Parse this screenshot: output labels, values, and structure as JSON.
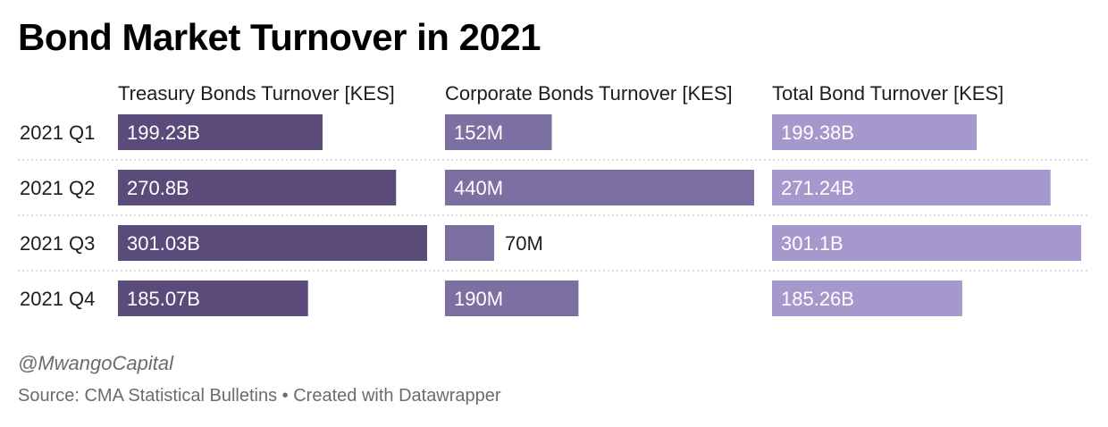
{
  "title": "Bond Market Turnover in 2021",
  "byline": "@MwangoCapital",
  "source": "Source: CMA Statistical Bulletins • Created with Datawrapper",
  "chart_data": {
    "type": "bar",
    "layout": "split-bars",
    "categories": [
      "2021 Q1",
      "2021 Q2",
      "2021 Q3",
      "2021 Q4"
    ],
    "series": [
      {
        "name": "Treasury Bonds Turnover [KES]",
        "values": [
          199.23,
          270.8,
          301.03,
          185.07
        ],
        "unit": "B",
        "labels": [
          "199.23B",
          "270.8B",
          "301.03B",
          "185.07B"
        ],
        "color": "#5a4b7b"
      },
      {
        "name": "Corporate Bonds Turnover [KES]",
        "values": [
          152,
          440,
          70,
          190
        ],
        "unit": "M",
        "labels": [
          "152M",
          "440M",
          "70M",
          "190M"
        ],
        "color": "#7c6fa2"
      },
      {
        "name": "Total Bond Turnover [KES]",
        "values": [
          199.38,
          271.24,
          301.1,
          185.26
        ],
        "unit": "B",
        "labels": [
          "199.38B",
          "271.24B",
          "301.1B",
          "185.26B"
        ],
        "color": "#a598cc"
      }
    ],
    "grid": "dotted row separators"
  }
}
